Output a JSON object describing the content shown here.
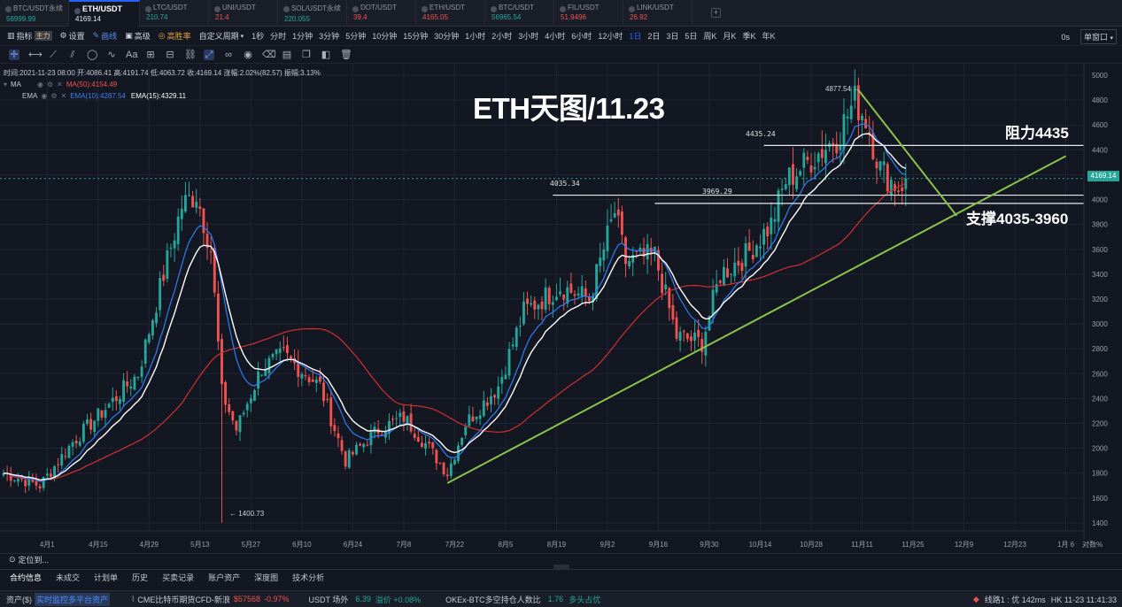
{
  "tabs": [
    {
      "name": "BTC/USDT永续",
      "price": "56999.99",
      "dir": "up"
    },
    {
      "name": "ETH/USDT",
      "price": "4169.14",
      "dir": "flat",
      "active": true
    },
    {
      "name": "LTC/USDT",
      "price": "210.74",
      "dir": "up"
    },
    {
      "name": "UNI/USDT",
      "price": "21.4",
      "dir": "down"
    },
    {
      "name": "SOL/USDT永续",
      "price": "220.055",
      "dir": "up"
    },
    {
      "name": "DOT/USDT",
      "price": "39.4",
      "dir": "down"
    },
    {
      "name": "ETH/USDT",
      "price": "4165.05",
      "dir": "down"
    },
    {
      "name": "BTC/USDT",
      "price": "56965.54",
      "dir": "up"
    },
    {
      "name": "FIL/USDT",
      "price": "51.9496",
      "dir": "down"
    },
    {
      "name": "LINK/USDT",
      "price": "26.92",
      "dir": "down"
    }
  ],
  "toolbar": {
    "indicator": "指标",
    "main": "主力",
    "settings": "设置",
    "draw": "画线",
    "advanced": "高级",
    "winrate": "高胜率",
    "custom_period": "自定义周期",
    "intervals": [
      "1秒",
      "分时",
      "1分钟",
      "3分钟",
      "5分钟",
      "10分钟",
      "15分钟",
      "30分钟",
      "1小时",
      "2小时",
      "3小时",
      "4小时",
      "6小时",
      "12小时",
      "1日",
      "2日",
      "3日",
      "5日",
      "周K",
      "月K",
      "季K",
      "年K"
    ],
    "active_interval": "1日",
    "zero_s": "0s",
    "window": "单窗口"
  },
  "info": {
    "ohlc": "时间:2021-11-23 08:00  开:4086.41  高:4191.74  低:4063.72  收:4169.14  涨幅:2.02%(82.57)  振幅:3.13%",
    "ma_label": "MA",
    "ma50": "MA(50):4154.49",
    "ema_label": "EMA",
    "ema10": "EMA(10):4287.54",
    "ema15": "EMA(15):4329.11"
  },
  "title": "ETH天图/11.23",
  "annotations": {
    "resistance": "阻力4435",
    "support": "支撑4035-3960",
    "lvl_4435": "4435.24",
    "lvl_4035": "4035.34",
    "lvl_3969": "3969.29",
    "peak": "4877.54",
    "low": "1400.73"
  },
  "current_price": "4169.14",
  "colors": {
    "up": "#26a69a",
    "down": "#ef5350",
    "ema10": "#2f7df6",
    "ema15": "#ffffff",
    "ma50": "#d32f2f",
    "trend": "#8bc34a"
  },
  "chart_data": {
    "type": "candlestick",
    "ylim": [
      1300,
      5000
    ],
    "y_ticks": [
      5000,
      4800,
      4600,
      4400,
      4200,
      4000,
      3800,
      3600,
      3400,
      3200,
      3000,
      2800,
      2600,
      2400,
      2200,
      2000,
      1800,
      1600,
      1400
    ],
    "x_labels": [
      "4月1",
      "4月15",
      "4月29",
      "5月13",
      "5月27",
      "6月10",
      "6月24",
      "7月8",
      "7月22",
      "8月5",
      "8月19",
      "9月2",
      "9月16",
      "9月30",
      "10月14",
      "10月28",
      "11月11",
      "11月25",
      "12月9",
      "12月23",
      "1月 6"
    ],
    "axis_suffix": "对数",
    "pct_label": "%",
    "horizontal_levels": [
      4435.24,
      4035.34,
      3969.29
    ],
    "anchors": [
      [
        "2021-03-20",
        1800
      ],
      [
        "2021-03-30",
        1700
      ],
      [
        "2021-04-08",
        2050
      ],
      [
        "2021-04-18",
        2350
      ],
      [
        "2021-04-26",
        2600
      ],
      [
        "2021-05-03",
        3400
      ],
      [
        "2021-05-08",
        3950
      ],
      [
        "2021-05-12",
        4050
      ],
      [
        "2021-05-16",
        3600
      ],
      [
        "2021-05-19",
        2450
      ],
      [
        "2021-05-23",
        2150
      ],
      [
        "2021-05-30",
        2650
      ],
      [
        "2021-06-05",
        2750
      ],
      [
        "2021-06-15",
        2500
      ],
      [
        "2021-06-22",
        1900
      ],
      [
        "2021-07-01",
        2150
      ],
      [
        "2021-07-08",
        2250
      ],
      [
        "2021-07-15",
        2000
      ],
      [
        "2021-07-20",
        1800
      ],
      [
        "2021-07-25",
        2200
      ],
      [
        "2021-08-03",
        2500
      ],
      [
        "2021-08-10",
        3100
      ],
      [
        "2021-08-20",
        3300
      ],
      [
        "2021-08-28",
        3200
      ],
      [
        "2021-09-04",
        3900
      ],
      [
        "2021-09-07",
        3500
      ],
      [
        "2021-09-15",
        3550
      ],
      [
        "2021-09-21",
        2900
      ],
      [
        "2021-09-28",
        2850
      ],
      [
        "2021-10-03",
        3400
      ],
      [
        "2021-10-10",
        3550
      ],
      [
        "2021-10-17",
        3800
      ],
      [
        "2021-10-21",
        4150
      ],
      [
        "2021-10-29",
        4350
      ],
      [
        "2021-11-04",
        4500
      ],
      [
        "2021-11-09",
        4800
      ],
      [
        "2021-11-12",
        4650
      ],
      [
        "2021-11-16",
        4250
      ],
      [
        "2021-11-19",
        4150
      ],
      [
        "2021-11-21",
        4100
      ],
      [
        "2021-11-23",
        4169
      ]
    ],
    "markers": [
      {
        "date": "2021-05-19",
        "value": 1400.73,
        "label": "1400.73"
      },
      {
        "date": "2021-11-10",
        "value": 4877.54,
        "label": "4877.54"
      }
    ],
    "trendlines": [
      [
        [
          "2021-07-20",
          1720
        ],
        [
          "2022-01-06",
          4350
        ]
      ],
      [
        [
          "2021-11-10",
          4880
        ],
        [
          "2021-12-07",
          3870
        ]
      ]
    ],
    "lines": [
      "EMA(10)",
      "EMA(15)",
      "MA(50)"
    ]
  },
  "bottom": {
    "locate": "定位到...",
    "tabs": [
      "合约信息",
      "未成交",
      "计划单",
      "历史",
      "买卖记录",
      "账户资产",
      "深度图",
      "技术分析"
    ]
  },
  "status": {
    "assets": "资产($)",
    "monitor": "实时监控多平台资产",
    "cme": "CME比特币期货CFD-新浪",
    "cme_price": "$57568",
    "cme_change": "-0.97%",
    "usdt_label": "USDT 场外",
    "usdt_val": "6.39",
    "premium": "溢价 +0.08%",
    "okex": "OKEx-BTC多空持仓人数比",
    "okex_val": "1.76",
    "okex_state": "多头占优",
    "line": "线路1 : 优 142ms",
    "clock": "HK 11-23 11:41:33"
  }
}
